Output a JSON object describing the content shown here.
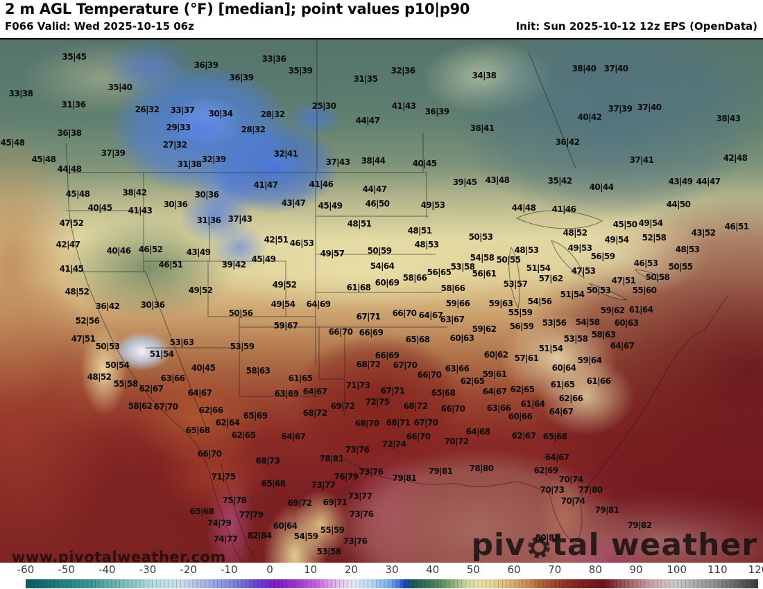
{
  "header": {
    "title": "2 m AGL Temperature (°F) [median]; point values p10|p90",
    "left_sub": "F066 Valid: Wed 2025-10-15 06z",
    "right_sub": "Init: Sun 2025-10-12 12z EPS (OpenData)"
  },
  "watermark": {
    "url_text": "www.pivotalweather.com",
    "logo_pre": "piv",
    "logo_post": "tal weather"
  },
  "colorbar": {
    "min": -60,
    "max": 120,
    "ticks": [
      -60,
      -50,
      -40,
      -30,
      -20,
      -10,
      0,
      10,
      20,
      30,
      40,
      50,
      60,
      70,
      80,
      90,
      100,
      110,
      120
    ],
    "stops": [
      [
        -60,
        "#0d5a60"
      ],
      [
        -52,
        "#1f7e7e"
      ],
      [
        -44,
        "#3f9596"
      ],
      [
        -36,
        "#7dbcbc"
      ],
      [
        -28,
        "#b9dfe0"
      ],
      [
        -22,
        "#cdddec"
      ],
      [
        -16,
        "#a9b6e6"
      ],
      [
        -9,
        "#8284d8"
      ],
      [
        -4,
        "#6b4ecf"
      ],
      [
        1,
        "#7a1fc5"
      ],
      [
        6,
        "#9c32d0"
      ],
      [
        11,
        "#c45edd"
      ],
      [
        15,
        "#d9a3e8"
      ],
      [
        18,
        "#e5cff0"
      ],
      [
        21,
        "#dfe9f6"
      ],
      [
        25,
        "#b8d5f2"
      ],
      [
        29,
        "#84b2ea"
      ],
      [
        32,
        "#3f70d6"
      ],
      [
        33,
        "#1e46c8"
      ],
      [
        35,
        "#1d5a52"
      ],
      [
        38,
        "#356e57"
      ],
      [
        42,
        "#5c8a63"
      ],
      [
        45,
        "#93ad7a"
      ],
      [
        48,
        "#c9d29c"
      ],
      [
        51,
        "#e9e3ac"
      ],
      [
        55,
        "#e5d391"
      ],
      [
        59,
        "#d9b477"
      ],
      [
        63,
        "#c68f5b"
      ],
      [
        66,
        "#b26a42"
      ],
      [
        70,
        "#a04531"
      ],
      [
        74,
        "#8c2b26"
      ],
      [
        78,
        "#7a1d22"
      ],
      [
        82,
        "#69141e"
      ],
      [
        85,
        "#8a3a42"
      ],
      [
        89,
        "#ab6b72"
      ],
      [
        93,
        "#c49ca0"
      ],
      [
        97,
        "#d2bcbe"
      ],
      [
        100,
        "#c9c9c9"
      ],
      [
        105,
        "#a8a8a8"
      ],
      [
        110,
        "#8b8b8b"
      ],
      [
        115,
        "#636363"
      ],
      [
        120,
        "#3a3a3a"
      ]
    ]
  },
  "map": {
    "units": "°F",
    "value_format": "p10|p90",
    "points": [
      [
        107,
        80,
        "35|45"
      ],
      [
        297,
        92,
        "36|39"
      ],
      [
        348,
        110,
        "36|39"
      ],
      [
        30,
        133,
        "33|38"
      ],
      [
        173,
        124,
        "35|40"
      ],
      [
        106,
        149,
        "31|36"
      ],
      [
        212,
        156,
        "26|32"
      ],
      [
        263,
        157,
        "33|37"
      ],
      [
        318,
        162,
        "30|34"
      ],
      [
        257,
        182,
        "29|33"
      ],
      [
        100,
        190,
        "36|38"
      ],
      [
        252,
        207,
        "27|32"
      ],
      [
        18,
        204,
        "45|48"
      ],
      [
        163,
        219,
        "37|39"
      ],
      [
        63,
        228,
        "45|48"
      ],
      [
        273,
        235,
        "31|38"
      ],
      [
        308,
        228,
        "32|39"
      ],
      [
        100,
        242,
        "44|48"
      ],
      [
        365,
        185,
        "28|32"
      ],
      [
        395,
        83,
        "33|36"
      ],
      [
        433,
        100,
        "35|39"
      ],
      [
        581,
        100,
        "32|36"
      ],
      [
        527,
        112,
        "31|35"
      ],
      [
        698,
        107,
        "34|38"
      ],
      [
        467,
        151,
        "25|30"
      ],
      [
        393,
        163,
        "28|32"
      ],
      [
        582,
        151,
        "41|43"
      ],
      [
        630,
        159,
        "36|39"
      ],
      [
        695,
        183,
        "38|41"
      ],
      [
        530,
        172,
        "44|47"
      ],
      [
        412,
        220,
        "32|41"
      ],
      [
        487,
        232,
        "37|43"
      ],
      [
        538,
        230,
        "38|44"
      ],
      [
        612,
        234,
        "40|45"
      ],
      [
        842,
        97,
        "38|40"
      ],
      [
        888,
        97,
        "37|40"
      ],
      [
        894,
        155,
        "37|39"
      ],
      [
        936,
        153,
        "37|40"
      ],
      [
        1050,
        169,
        "38|43"
      ],
      [
        850,
        167,
        "40|42"
      ],
      [
        818,
        203,
        "36|42"
      ],
      [
        925,
        229,
        "37|41"
      ],
      [
        1060,
        226,
        "42|48"
      ],
      [
        112,
        278,
        "45|48"
      ],
      [
        194,
        276,
        "38|42"
      ],
      [
        298,
        279,
        "30|36"
      ],
      [
        253,
        293,
        "30|36"
      ],
      [
        144,
        298,
        "40|45"
      ],
      [
        202,
        302,
        "41|43"
      ],
      [
        301,
        316,
        "31|36"
      ],
      [
        346,
        314,
        "37|43"
      ],
      [
        103,
        320,
        "47|52"
      ],
      [
        98,
        351,
        "42|47"
      ],
      [
        171,
        360,
        "40|46"
      ],
      [
        217,
        358,
        "46|52"
      ],
      [
        286,
        362,
        "43|49"
      ],
      [
        246,
        380,
        "46|51"
      ],
      [
        337,
        380,
        "39|42"
      ],
      [
        103,
        386,
        "41|45"
      ],
      [
        111,
        419,
        "48|52"
      ],
      [
        289,
        417,
        "49|52"
      ],
      [
        155,
        440,
        "36|42"
      ],
      [
        220,
        438,
        "30|36"
      ],
      [
        383,
        265,
        "41|47"
      ],
      [
        463,
        264,
        "41|46"
      ],
      [
        540,
        271,
        "44|47"
      ],
      [
        670,
        261,
        "39|45"
      ],
      [
        717,
        258,
        "43|48"
      ],
      [
        423,
        291,
        "43|47"
      ],
      [
        476,
        295,
        "45|49"
      ],
      [
        544,
        292,
        "46|50"
      ],
      [
        624,
        294,
        "49|53"
      ],
      [
        518,
        321,
        "48|51"
      ],
      [
        605,
        331,
        "48|51"
      ],
      [
        398,
        344,
        "42|51"
      ],
      [
        435,
        349,
        "46|53"
      ],
      [
        693,
        340,
        "50|53"
      ],
      [
        615,
        351,
        "48|53"
      ],
      [
        479,
        364,
        "49|57"
      ],
      [
        547,
        360,
        "50|59"
      ],
      [
        380,
        372,
        "45|49"
      ],
      [
        695,
        370,
        "54|58"
      ],
      [
        733,
        373,
        "50|55"
      ],
      [
        551,
        382,
        "54|64"
      ],
      [
        633,
        391,
        "56|65"
      ],
      [
        667,
        383,
        "53|58"
      ],
      [
        698,
        393,
        "56|61"
      ],
      [
        598,
        399,
        "58|66"
      ],
      [
        410,
        409,
        "49|52"
      ],
      [
        517,
        413,
        "61|68"
      ],
      [
        558,
        406,
        "60|69"
      ],
      [
        653,
        414,
        "58|66"
      ],
      [
        743,
        408,
        "53|57"
      ],
      [
        408,
        437,
        "49|54"
      ],
      [
        459,
        437,
        "64|69"
      ],
      [
        660,
        436,
        "59|66"
      ],
      [
        722,
        436,
        "59|63"
      ],
      [
        807,
        259,
        "35|42"
      ],
      [
        867,
        268,
        "40|44"
      ],
      [
        981,
        260,
        "43|49"
      ],
      [
        1021,
        260,
        "44|47"
      ],
      [
        755,
        298,
        "44|48"
      ],
      [
        813,
        300,
        "41|46"
      ],
      [
        978,
        293,
        "44|50"
      ],
      [
        901,
        322,
        "45|50"
      ],
      [
        938,
        320,
        "49|54"
      ],
      [
        1062,
        325,
        "46|51"
      ],
      [
        829,
        334,
        "48|52"
      ],
      [
        1014,
        334,
        "43|52"
      ],
      [
        889,
        344,
        "49|54"
      ],
      [
        943,
        341,
        "52|58"
      ],
      [
        836,
        356,
        "49|53"
      ],
      [
        991,
        358,
        "48|53"
      ],
      [
        869,
        368,
        "56|59"
      ],
      [
        759,
        359,
        "48|53"
      ],
      [
        776,
        385,
        "51|54"
      ],
      [
        931,
        378,
        "46|53"
      ],
      [
        981,
        383,
        "50|55"
      ],
      [
        841,
        389,
        "47|53"
      ],
      [
        794,
        400,
        "57|62"
      ],
      [
        948,
        398,
        "50|58"
      ],
      [
        899,
        403,
        "47|51"
      ],
      [
        863,
        417,
        "50|53"
      ],
      [
        929,
        417,
        "55|60"
      ],
      [
        825,
        423,
        "51|54"
      ],
      [
        778,
        433,
        "54|56"
      ],
      [
        347,
        450,
        "50|56"
      ],
      [
        126,
        461,
        "52|56"
      ],
      [
        120,
        487,
        "47|51"
      ],
      [
        155,
        498,
        "50|53"
      ],
      [
        262,
        492,
        "53|63"
      ],
      [
        349,
        498,
        "53|59"
      ],
      [
        233,
        509,
        "51|54"
      ],
      [
        169,
        525,
        "50|54"
      ],
      [
        293,
        529,
        "40|45"
      ],
      [
        143,
        542,
        "48|52"
      ],
      [
        249,
        544,
        "63|66"
      ],
      [
        181,
        552,
        "55|58"
      ],
      [
        218,
        559,
        "62|67"
      ],
      [
        288,
        565,
        "64|67"
      ],
      [
        202,
        584,
        "58|62"
      ],
      [
        239,
        585,
        "67|70"
      ],
      [
        304,
        590,
        "62|66"
      ],
      [
        328,
        608,
        "62|64"
      ],
      [
        285,
        619,
        "65|68"
      ],
      [
        351,
        626,
        "62|65"
      ],
      [
        583,
        450,
        "66|70"
      ],
      [
        621,
        453,
        "64|67"
      ],
      [
        531,
        455,
        "67|71"
      ],
      [
        652,
        459,
        "63|67"
      ],
      [
        412,
        468,
        "59|67"
      ],
      [
        698,
        473,
        "59|62"
      ],
      [
        491,
        477,
        "66|70"
      ],
      [
        535,
        478,
        "66|69"
      ],
      [
        602,
        488,
        "65|68"
      ],
      [
        666,
        486,
        "60|63"
      ],
      [
        715,
        510,
        "60|62"
      ],
      [
        558,
        511,
        "66|69"
      ],
      [
        531,
        524,
        "68|72"
      ],
      [
        584,
        525,
        "67|70"
      ],
      [
        659,
        530,
        "63|66"
      ],
      [
        372,
        533,
        "58|63"
      ],
      [
        433,
        544,
        "61|65"
      ],
      [
        619,
        539,
        "66|70"
      ],
      [
        713,
        538,
        "59|61"
      ],
      [
        681,
        548,
        "62|65"
      ],
      [
        516,
        554,
        "71|73"
      ],
      [
        566,
        562,
        "67|71"
      ],
      [
        454,
        563,
        "64|67"
      ],
      [
        413,
        566,
        "63|69"
      ],
      [
        713,
        563,
        "64|67"
      ],
      [
        639,
        565,
        "65|68"
      ],
      [
        544,
        578,
        "72|75"
      ],
      [
        494,
        584,
        "69|72"
      ],
      [
        599,
        584,
        "68|72"
      ],
      [
        653,
        588,
        "66|70"
      ],
      [
        719,
        587,
        "63|66"
      ],
      [
        454,
        594,
        "68|72"
      ],
      [
        368,
        598,
        "65|69"
      ],
      [
        529,
        609,
        "68|70"
      ],
      [
        574,
        608,
        "68|71"
      ],
      [
        614,
        608,
        "67|70"
      ],
      [
        689,
        621,
        "64|68"
      ],
      [
        423,
        628,
        "64|67"
      ],
      [
        603,
        628,
        "66|70"
      ],
      [
        750,
        449,
        "55|59"
      ],
      [
        883,
        446,
        "59|62"
      ],
      [
        924,
        445,
        "61|64"
      ],
      [
        799,
        464,
        "53|56"
      ],
      [
        847,
        463,
        "54|58"
      ],
      [
        903,
        464,
        "60|63"
      ],
      [
        752,
        469,
        "56|59"
      ],
      [
        870,
        481,
        "58|63"
      ],
      [
        830,
        487,
        "53|58"
      ],
      [
        794,
        501,
        "51|54"
      ],
      [
        897,
        497,
        "64|67"
      ],
      [
        759,
        515,
        "57|61"
      ],
      [
        850,
        518,
        "59|64"
      ],
      [
        813,
        529,
        "60|64"
      ],
      [
        863,
        548,
        "61|66"
      ],
      [
        811,
        553,
        "61|65"
      ],
      [
        753,
        560,
        "62|65"
      ],
      [
        823,
        573,
        "62|66"
      ],
      [
        768,
        581,
        "61|64"
      ],
      [
        809,
        592,
        "64|67"
      ],
      [
        750,
        599,
        "60|66"
      ],
      [
        755,
        627,
        "62|67"
      ],
      [
        800,
        628,
        "65|68"
      ],
      [
        302,
        653,
        "66|70"
      ],
      [
        322,
        686,
        "71|75"
      ],
      [
        338,
        720,
        "75|78"
      ],
      [
        291,
        736,
        "65|68"
      ],
      [
        316,
        753,
        "74|79"
      ],
      [
        362,
        741,
        "77|79"
      ],
      [
        325,
        776,
        "74|77"
      ],
      [
        568,
        639,
        "72|74"
      ],
      [
        658,
        635,
        "70|72"
      ],
      [
        515,
        647,
        "73|76"
      ],
      [
        478,
        660,
        "78|81"
      ],
      [
        386,
        663,
        "68|73"
      ],
      [
        535,
        679,
        "73|76"
      ],
      [
        635,
        678,
        "79|81"
      ],
      [
        694,
        674,
        "78|80"
      ],
      [
        499,
        686,
        "76|79"
      ],
      [
        583,
        688,
        "79|81"
      ],
      [
        394,
        696,
        "65|68"
      ],
      [
        466,
        698,
        "73|77"
      ],
      [
        519,
        714,
        "73|77"
      ],
      [
        432,
        724,
        "69|72"
      ],
      [
        483,
        723,
        "69|71"
      ],
      [
        521,
        740,
        "73|76"
      ],
      [
        411,
        757,
        "60|64"
      ],
      [
        374,
        771,
        "82|84"
      ],
      [
        479,
        763,
        "55|59"
      ],
      [
        441,
        772,
        "54|59"
      ],
      [
        512,
        779,
        "73|76"
      ],
      [
        474,
        794,
        "53|58"
      ],
      [
        803,
        658,
        "64|67"
      ],
      [
        787,
        677,
        "62|69"
      ],
      [
        823,
        690,
        "70|74"
      ],
      [
        796,
        705,
        "70|73"
      ],
      [
        851,
        705,
        "77|80"
      ],
      [
        826,
        721,
        "70|74"
      ],
      [
        875,
        734,
        "79|81"
      ],
      [
        922,
        756,
        "79|82"
      ],
      [
        789,
        774,
        "80|83"
      ]
    ]
  }
}
